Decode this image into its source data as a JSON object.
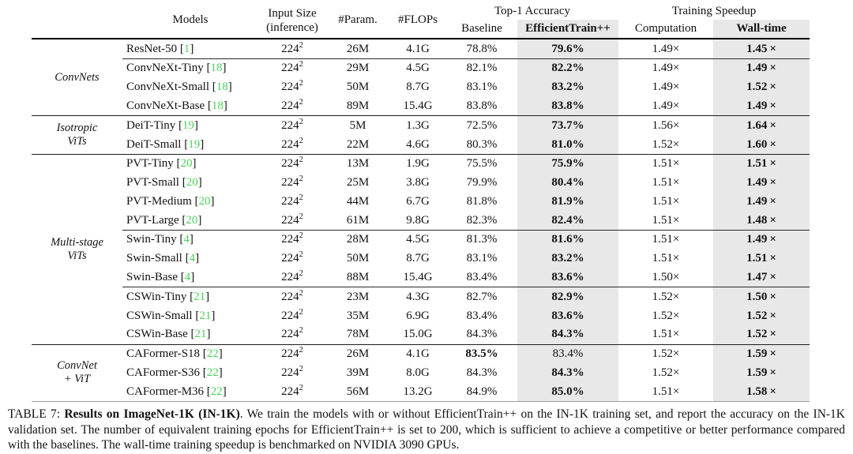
{
  "header": {
    "models": "Models",
    "input_size": [
      "Input Size",
      "(inference)"
    ],
    "params": "#Param.",
    "flops": "#FLOPs",
    "top1_accuracy": "Top-1 Accuracy",
    "baseline": "Baseline",
    "efficienttrain": "EfficientTrain++",
    "training_speedup": "Training Speedup",
    "computation": "Computation",
    "walltime": "Wall-time"
  },
  "colors": {
    "citation_green": "#4dd15c",
    "highlight_column_gray": "#e8e8e8"
  },
  "groups": [
    {
      "label_lines": [
        "ConvNets"
      ],
      "blocks": [
        [
          {
            "model": "ResNet-50",
            "cite": "1",
            "input": "224",
            "input_sup": "2",
            "params": "26M",
            "flops": "4.1G",
            "baseline": "78.8%",
            "et": "79.6%",
            "comp": "1.49×",
            "wall": "1.45×"
          }
        ],
        [
          {
            "model": "ConvNeXt-Tiny",
            "cite": "18",
            "input": "224",
            "input_sup": "2",
            "params": "29M",
            "flops": "4.5G",
            "baseline": "82.1%",
            "et": "82.2%",
            "comp": "1.49×",
            "wall": "1.49×"
          },
          {
            "model": "ConvNeXt-Small",
            "cite": "18",
            "input": "224",
            "input_sup": "2",
            "params": "50M",
            "flops": "8.7G",
            "baseline": "83.1%",
            "et": "83.2%",
            "comp": "1.49×",
            "wall": "1.52×"
          },
          {
            "model": "ConvNeXt-Base",
            "cite": "18",
            "input": "224",
            "input_sup": "2",
            "params": "89M",
            "flops": "15.4G",
            "baseline": "83.8%",
            "et": "83.8%",
            "comp": "1.49×",
            "wall": "1.49×"
          }
        ]
      ]
    },
    {
      "label_lines": [
        "Isotropic",
        "ViTs"
      ],
      "blocks": [
        [
          {
            "model": "DeiT-Tiny",
            "cite": "19",
            "input": "224",
            "input_sup": "2",
            "params": "5M",
            "flops": "1.3G",
            "baseline": "72.5%",
            "et": "73.7%",
            "comp": "1.56×",
            "wall": "1.64×"
          },
          {
            "model": "DeiT-Small",
            "cite": "19",
            "input": "224",
            "input_sup": "2",
            "params": "22M",
            "flops": "4.6G",
            "baseline": "80.3%",
            "et": "81.0%",
            "comp": "1.52×",
            "wall": "1.60×"
          }
        ]
      ]
    },
    {
      "label_lines": [
        "Multi-stage",
        "ViTs"
      ],
      "blocks": [
        [
          {
            "model": "PVT-Tiny",
            "cite": "20",
            "input": "224",
            "input_sup": "2",
            "params": "13M",
            "flops": "1.9G",
            "baseline": "75.5%",
            "et": "75.9%",
            "comp": "1.51×",
            "wall": "1.51×"
          },
          {
            "model": "PVT-Small",
            "cite": "20",
            "input": "224",
            "input_sup": "2",
            "params": "25M",
            "flops": "3.8G",
            "baseline": "79.9%",
            "et": "80.4%",
            "comp": "1.51×",
            "wall": "1.49×"
          },
          {
            "model": "PVT-Medium",
            "cite": "20",
            "input": "224",
            "input_sup": "2",
            "params": "44M",
            "flops": "6.7G",
            "baseline": "81.8%",
            "et": "81.9%",
            "comp": "1.51×",
            "wall": "1.49×"
          },
          {
            "model": "PVT-Large",
            "cite": "20",
            "input": "224",
            "input_sup": "2",
            "params": "61M",
            "flops": "9.8G",
            "baseline": "82.3%",
            "et": "82.4%",
            "comp": "1.51×",
            "wall": "1.48×"
          }
        ],
        [
          {
            "model": "Swin-Tiny",
            "cite": "4",
            "input": "224",
            "input_sup": "2",
            "params": "28M",
            "flops": "4.5G",
            "baseline": "81.3%",
            "et": "81.6%",
            "comp": "1.51×",
            "wall": "1.49×"
          },
          {
            "model": "Swin-Small",
            "cite": "4",
            "input": "224",
            "input_sup": "2",
            "params": "50M",
            "flops": "8.7G",
            "baseline": "83.1%",
            "et": "83.2%",
            "comp": "1.51×",
            "wall": "1.51×"
          },
          {
            "model": "Swin-Base",
            "cite": "4",
            "input": "224",
            "input_sup": "2",
            "params": "88M",
            "flops": "15.4G",
            "baseline": "83.4%",
            "et": "83.6%",
            "comp": "1.50×",
            "wall": "1.47×"
          }
        ],
        [
          {
            "model": "CSWin-Tiny",
            "cite": "21",
            "input": "224",
            "input_sup": "2",
            "params": "23M",
            "flops": "4.3G",
            "baseline": "82.7%",
            "et": "82.9%",
            "comp": "1.52×",
            "wall": "1.50×"
          },
          {
            "model": "CSWin-Small",
            "cite": "21",
            "input": "224",
            "input_sup": "2",
            "params": "35M",
            "flops": "6.9G",
            "baseline": "83.4%",
            "et": "83.6%",
            "comp": "1.52×",
            "wall": "1.52×"
          },
          {
            "model": "CSWin-Base",
            "cite": "21",
            "input": "224",
            "input_sup": "2",
            "params": "78M",
            "flops": "15.0G",
            "baseline": "84.3%",
            "et": "84.3%",
            "comp": "1.51×",
            "wall": "1.52×"
          }
        ]
      ]
    },
    {
      "label_lines": [
        "ConvNet",
        "+ ViT"
      ],
      "blocks": [
        [
          {
            "model": "CAFormer-S18",
            "cite": "22",
            "input": "224",
            "input_sup": "2",
            "params": "26M",
            "flops": "4.1G",
            "baseline": "83.5%",
            "et": "83.4%",
            "comp": "1.52×",
            "wall": "1.59×",
            "baseline_bold": true,
            "et_bold": false
          },
          {
            "model": "CAFormer-S36",
            "cite": "22",
            "input": "224",
            "input_sup": "2",
            "params": "39M",
            "flops": "8.0G",
            "baseline": "84.3%",
            "et": "84.3%",
            "comp": "1.52×",
            "wall": "1.59×"
          },
          {
            "model": "CAFormer-M36",
            "cite": "22",
            "input": "224",
            "input_sup": "2",
            "params": "56M",
            "flops": "13.2G",
            "baseline": "84.9%",
            "et": "85.0%",
            "comp": "1.51×",
            "wall": "1.58×"
          }
        ]
      ]
    }
  ],
  "caption": {
    "label": "TABLE 7: ",
    "title_bold": "Results on ImageNet-1K (IN-1K)",
    "body": ". We train the models with or without EfficientTrain++ on the IN-1K training set, and report the accuracy on the IN-1K validation set. The number of equivalent training epochs for EfficientTrain++ is set to 200, which is sufficient to achieve a competitive or better performance compared with the baselines. The wall-time training speedup is benchmarked on NVIDIA 3090 GPUs."
  }
}
